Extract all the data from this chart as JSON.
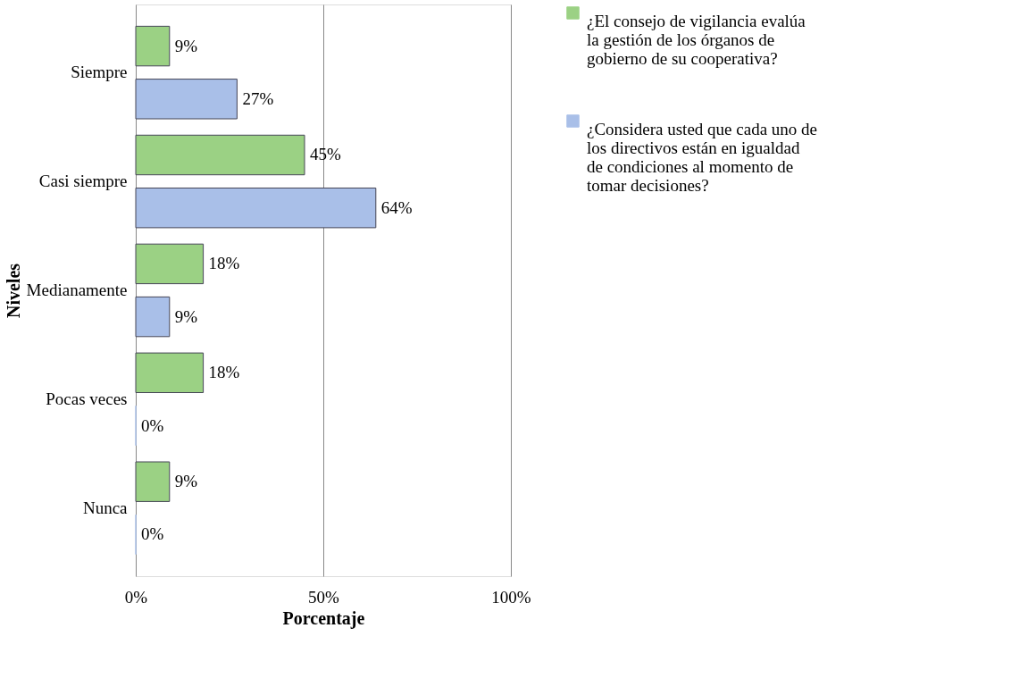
{
  "chart_data": {
    "type": "bar",
    "orientation": "horizontal",
    "xlabel": "Porcentaje",
    "ylabel": "Niveles",
    "categories": [
      "Siempre",
      "Casi siempre",
      "Medianamente",
      "Pocas veces",
      "Nunca"
    ],
    "series": [
      {
        "name": "¿El consejo de vigilancia evalúa la gestión de los órganos de gobierno de su cooperativa?",
        "color": "#9bd184",
        "values": [
          9,
          45,
          18,
          18,
          9
        ],
        "value_labels": [
          "9%",
          "45%",
          "18%",
          "18%",
          "9%"
        ]
      },
      {
        "name": "¿Considera usted que cada uno de los directivos están en igualdad de condiciones al momento de tomar decisiones?",
        "color": "#a9bfe8",
        "values": [
          27,
          64,
          9,
          0,
          0
        ],
        "value_labels": [
          "27%",
          "64%",
          "9%",
          "0%",
          "0%"
        ]
      }
    ],
    "xlim": [
      0,
      100
    ],
    "xticks": [
      {
        "value": 0,
        "label": "0%"
      },
      {
        "value": 50,
        "label": "50%"
      },
      {
        "value": 100,
        "label": "100%"
      }
    ],
    "grid": "x",
    "legend": "right"
  }
}
